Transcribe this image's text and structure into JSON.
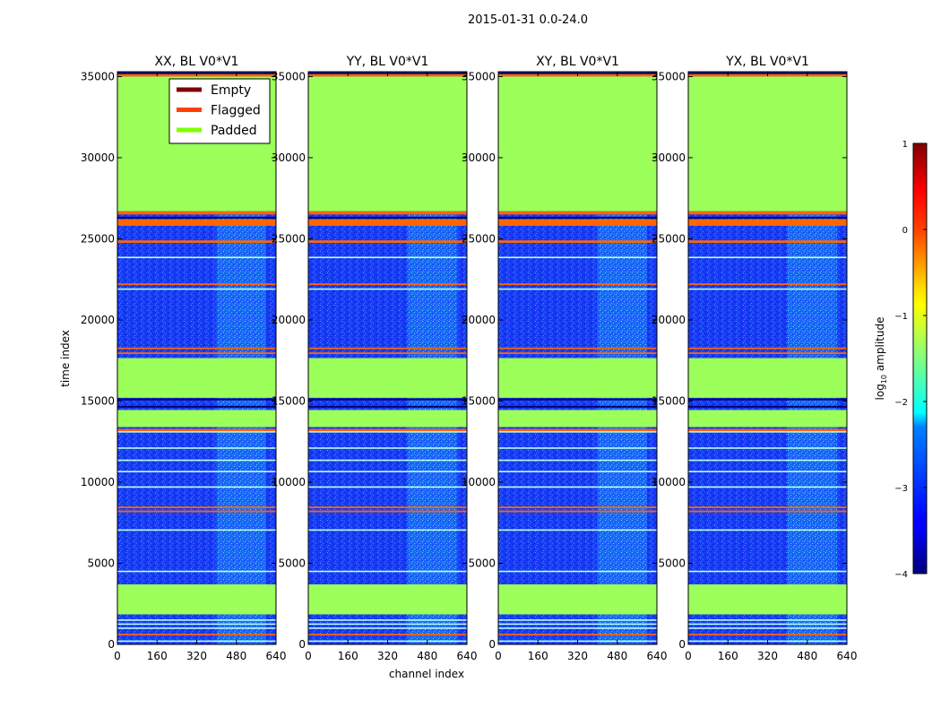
{
  "chart_data": {
    "type": "heatmap",
    "title": "2015-01-31 0.0-24.0",
    "xlabel": "channel index",
    "ylabel": "time index",
    "xlim": [
      0,
      640
    ],
    "ylim": [
      0,
      35300
    ],
    "x_ticks": [
      0,
      160,
      320,
      480,
      640
    ],
    "y_ticks": [
      0,
      5000,
      10000,
      15000,
      20000,
      25000,
      30000,
      35000
    ],
    "panels": [
      {
        "title": "XX, BL V0*V1"
      },
      {
        "title": "YY, BL V0*V1"
      },
      {
        "title": "XY, BL V0*V1"
      },
      {
        "title": "YX, BL V0*V1"
      }
    ],
    "legend": {
      "placement": "top-right of first panel",
      "entries": [
        {
          "label": "Empty",
          "color": "#800000"
        },
        {
          "label": "Flagged",
          "color": "#ff4000"
        },
        {
          "label": "Padded",
          "color": "#80ff00"
        }
      ]
    },
    "colorbar": {
      "label": "log10 amplitude",
      "label_main": "log",
      "label_sub": "10",
      "label_rest": " amplitude",
      "range": [
        -4,
        1
      ],
      "ticks": [
        {
          "value": -4,
          "label": "−4"
        },
        {
          "value": -3,
          "label": "−3"
        },
        {
          "value": -2,
          "label": "−2"
        },
        {
          "value": -1,
          "label": "−1"
        },
        {
          "value": 0,
          "label": "0"
        },
        {
          "value": 1,
          "label": "1"
        }
      ],
      "colormap": "jet"
    },
    "bands": [
      {
        "kind": "flagged",
        "from": 35000,
        "to": 35150
      },
      {
        "kind": "padded",
        "from": 26700,
        "to": 35000
      },
      {
        "kind": "flagged",
        "from": 26500,
        "to": 26700
      },
      {
        "kind": "flagged",
        "from": 25800,
        "to": 26200
      },
      {
        "kind": "flagged",
        "from": 24750,
        "to": 24900
      },
      {
        "kind": "flagged",
        "from": 22150,
        "to": 22250
      },
      {
        "kind": "flagged",
        "from": 18200,
        "to": 18300
      },
      {
        "kind": "flagged",
        "from": 17900,
        "to": 18000
      },
      {
        "kind": "padded",
        "from": 15200,
        "to": 17650
      },
      {
        "kind": "padded",
        "from": 13400,
        "to": 14450
      },
      {
        "kind": "flagged",
        "from": 13150,
        "to": 13280
      },
      {
        "kind": "flagged",
        "from": 8400,
        "to": 8500
      },
      {
        "kind": "flagged",
        "from": 8150,
        "to": 8250
      },
      {
        "kind": "padded",
        "from": 1850,
        "to": 3700
      },
      {
        "kind": "flagged",
        "from": 550,
        "to": 650
      }
    ],
    "bright_lines": [
      23850,
      21900,
      13100,
      12100,
      11350,
      10650,
      9700,
      7050,
      4500,
      1500,
      1250,
      1000,
      200
    ],
    "dark_lines": [
      35200,
      26300,
      15100,
      14650
    ],
    "signal_region": {
      "channel_from": 400,
      "channel_to": 600
    }
  }
}
